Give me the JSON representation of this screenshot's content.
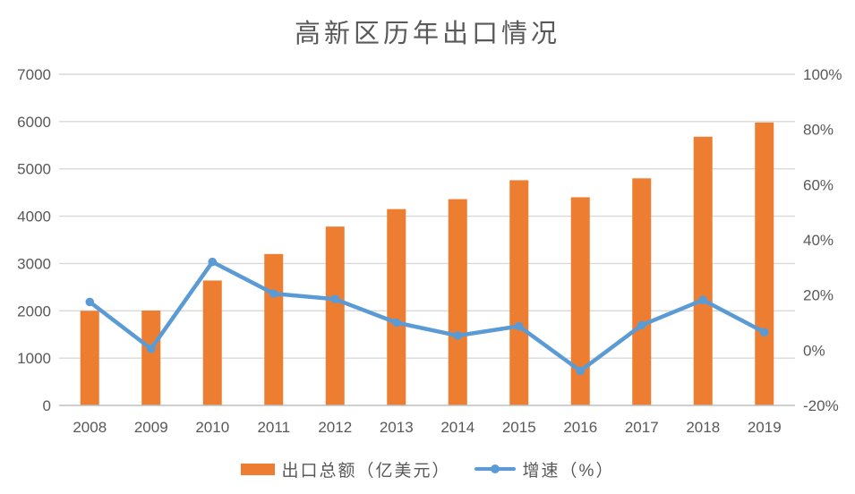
{
  "title": "高新区历年出口情况",
  "chart_data": {
    "type": "combo-bar-line",
    "title": "高新区历年出口情况",
    "categories": [
      "2008",
      "2009",
      "2010",
      "2011",
      "2012",
      "2013",
      "2014",
      "2015",
      "2016",
      "2017",
      "2018",
      "2019"
    ],
    "series": [
      {
        "name": "出口总额（亿美元）",
        "type": "bar",
        "axis": "left",
        "color": "#ED7D31",
        "values": [
          2000,
          2005,
          2640,
          3200,
          3780,
          4150,
          4360,
          4760,
          4400,
          4800,
          5680,
          5980
        ]
      },
      {
        "name": "增速（%）",
        "type": "line",
        "axis": "right",
        "color": "#5B9BD5",
        "values": [
          17.5,
          0.5,
          32,
          20.5,
          18.5,
          10,
          5.3,
          8.7,
          -7.5,
          9.1,
          18.2,
          6.5
        ]
      }
    ],
    "axes": {
      "left": {
        "min": 0,
        "max": 7000,
        "step": 1000,
        "tick_labels": [
          "0",
          "1000",
          "2000",
          "3000",
          "4000",
          "5000",
          "6000",
          "7000"
        ]
      },
      "right": {
        "min": -20,
        "max": 100,
        "step": 20,
        "unit": "%",
        "tick_labels": [
          "-20%",
          "0%",
          "20%",
          "40%",
          "60%",
          "80%",
          "100%"
        ]
      }
    },
    "grid": true,
    "legend_position": "bottom",
    "colors": {
      "grid": "#D9D9D9",
      "axis_line": "#BFBFBF",
      "tick_text": "#595959",
      "title_text": "#595959",
      "background": "#FFFFFF"
    }
  }
}
